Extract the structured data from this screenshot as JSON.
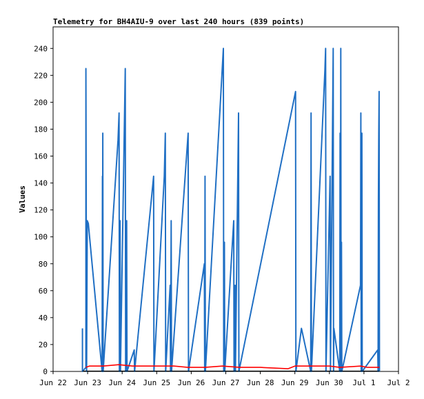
{
  "chart_data": {
    "type": "line",
    "title": "Telemetry for BH4AIU-9 over last 240 hours (839 points)",
    "xlabel": "",
    "ylabel": "Values",
    "x_ticks": [
      "Jun 22",
      "Jun 23",
      "Jun 24",
      "Jun 25",
      "Jun 26",
      "Jun 27",
      "Jun 28",
      "Jun 29",
      "Jun 30",
      "Jul 1",
      "Jul 2"
    ],
    "y_ticks": [
      0,
      20,
      40,
      60,
      80,
      100,
      120,
      140,
      160,
      180,
      200,
      220,
      240
    ],
    "xlim": [
      0,
      10
    ],
    "ylim": [
      0,
      256
    ],
    "grid": false,
    "legend": "none",
    "series": [
      {
        "color": "#1f6fc4",
        "points": [
          [
            0.85,
            32
          ],
          [
            0.85,
            0
          ],
          [
            0.95,
            3
          ],
          [
            0.95,
            225
          ],
          [
            0.97,
            0
          ],
          [
            0.99,
            112
          ],
          [
            1.02,
            110
          ],
          [
            1.42,
            0
          ],
          [
            1.43,
            145
          ],
          [
            1.43,
            0
          ],
          [
            1.44,
            177
          ],
          [
            1.45,
            0
          ],
          [
            1.88,
            172
          ],
          [
            1.91,
            192
          ],
          [
            1.92,
            0
          ],
          [
            1.94,
            112
          ],
          [
            1.95,
            0
          ],
          [
            2.09,
            225
          ],
          [
            2.1,
            0
          ],
          [
            2.13,
            112
          ],
          [
            2.14,
            0
          ],
          [
            2.35,
            16
          ],
          [
            2.36,
            0
          ],
          [
            2.91,
            145
          ],
          [
            2.92,
            0
          ],
          [
            3.22,
            145
          ],
          [
            3.25,
            177
          ],
          [
            3.26,
            0
          ],
          [
            3.39,
            64
          ],
          [
            3.4,
            0
          ],
          [
            3.42,
            112
          ],
          [
            3.43,
            0
          ],
          [
            3.91,
            177
          ],
          [
            3.92,
            0
          ],
          [
            4.38,
            80
          ],
          [
            4.39,
            0
          ],
          [
            4.4,
            145
          ],
          [
            4.41,
            0
          ],
          [
            4.93,
            240
          ],
          [
            4.94,
            0
          ],
          [
            4.96,
            96
          ],
          [
            4.97,
            0
          ],
          [
            5.23,
            112
          ],
          [
            5.24,
            0
          ],
          [
            5.27,
            64
          ],
          [
            5.28,
            0
          ],
          [
            5.37,
            192
          ],
          [
            5.38,
            0
          ],
          [
            7.02,
            208
          ],
          [
            7.03,
            0
          ],
          [
            7.19,
            32
          ],
          [
            7.2,
            31
          ],
          [
            7.46,
            0
          ],
          [
            7.47,
            192
          ],
          [
            7.48,
            0
          ],
          [
            7.87,
            224
          ],
          [
            7.89,
            240
          ],
          [
            7.9,
            0
          ],
          [
            8.02,
            145
          ],
          [
            8.03,
            0
          ],
          [
            8.11,
            240
          ],
          [
            8.12,
            0
          ],
          [
            8.13,
            32
          ],
          [
            8.3,
            0
          ],
          [
            8.31,
            177
          ],
          [
            8.32,
            0
          ],
          [
            8.33,
            240
          ],
          [
            8.34,
            0
          ],
          [
            8.35,
            96
          ],
          [
            8.36,
            0
          ],
          [
            8.9,
            64
          ],
          [
            8.91,
            192
          ],
          [
            8.92,
            0
          ],
          [
            8.94,
            177
          ],
          [
            8.95,
            0
          ],
          [
            9.4,
            16
          ],
          [
            9.41,
            0
          ],
          [
            9.42,
            128
          ],
          [
            9.43,
            177
          ],
          [
            9.44,
            208
          ],
          [
            9.45,
            0
          ]
        ]
      },
      {
        "color": "#ff0000",
        "points": [
          [
            0.95,
            3
          ],
          [
            1.05,
            4
          ],
          [
            1.45,
            4
          ],
          [
            1.9,
            5
          ],
          [
            2.3,
            4
          ],
          [
            3.0,
            4
          ],
          [
            3.5,
            4
          ],
          [
            3.9,
            3
          ],
          [
            4.4,
            3
          ],
          [
            4.9,
            4
          ],
          [
            5.4,
            3
          ],
          [
            6.0,
            3
          ],
          [
            6.8,
            2
          ],
          [
            7.0,
            4
          ],
          [
            7.5,
            4
          ],
          [
            8.0,
            4
          ],
          [
            8.3,
            3
          ],
          [
            8.9,
            4
          ],
          [
            9.1,
            3
          ],
          [
            9.45,
            3
          ]
        ]
      },
      {
        "color": "#000000",
        "points": [
          [
            0.85,
            0.3
          ],
          [
            9.45,
            0.3
          ]
        ]
      }
    ]
  }
}
